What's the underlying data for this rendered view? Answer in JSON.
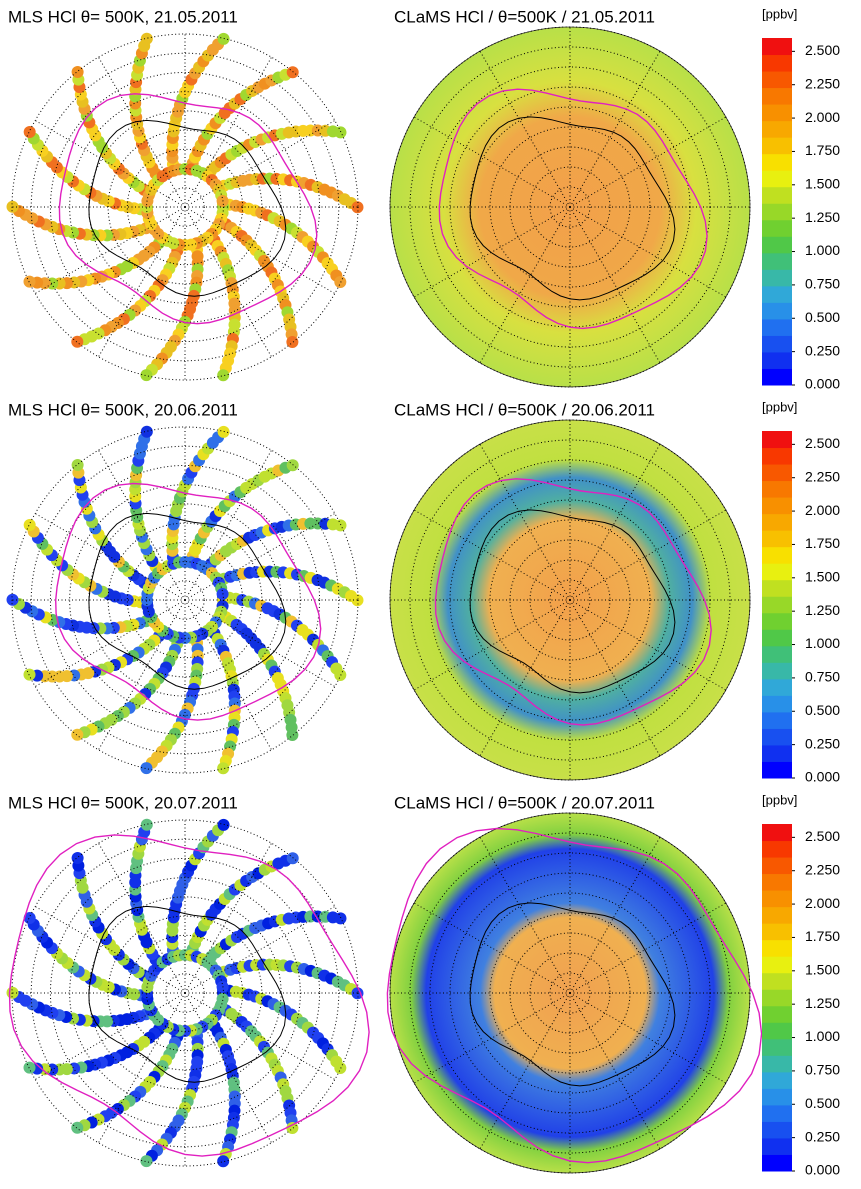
{
  "rows": [
    {
      "left_title": "MLS HCl  θ= 500K, 21.05.2011",
      "right_title": "CLaMS HCl / θ=500K / 21.05.2011",
      "colorbar": {
        "unit": "[ppbv]",
        "clim": [
          0,
          2.6
        ],
        "ticks": [
          {
            "value": 2.5,
            "label": "2.500"
          },
          {
            "value": 2.25,
            "label": "2.250"
          },
          {
            "value": 2,
            "label": "2.000"
          },
          {
            "value": 1.75,
            "label": "1.750"
          },
          {
            "value": 1.5,
            "label": "1.500"
          },
          {
            "value": 1.25,
            "label": "1.250"
          },
          {
            "value": 1,
            "label": "1.000"
          },
          {
            "value": 0.75,
            "label": "0.750"
          },
          {
            "value": 0.5,
            "label": "0.500"
          },
          {
            "value": 0.25,
            "label": "0.250"
          },
          {
            "value": 0,
            "label": "0.000"
          }
        ]
      }
    },
    {
      "left_title": "MLS HCl  θ= 500K, 20.06.2011",
      "right_title": "CLaMS HCl / θ=500K / 20.06.2011",
      "colorbar": {
        "unit": "[ppbv]",
        "clim": [
          0,
          2.6
        ],
        "ticks": [
          {
            "value": 2.5,
            "label": "2.500"
          },
          {
            "value": 2.25,
            "label": "2.250"
          },
          {
            "value": 2,
            "label": "2.000"
          },
          {
            "value": 1.75,
            "label": "1.750"
          },
          {
            "value": 1.5,
            "label": "1.500"
          },
          {
            "value": 1.25,
            "label": "1.250"
          },
          {
            "value": 1,
            "label": "1.000"
          },
          {
            "value": 0.75,
            "label": "0.750"
          },
          {
            "value": 0.5,
            "label": "0.500"
          },
          {
            "value": 0.25,
            "label": "0.250"
          },
          {
            "value": 0,
            "label": "0.000"
          }
        ]
      }
    },
    {
      "left_title": "MLS HCl  θ= 500K, 20.07.2011",
      "right_title": "CLaMS HCl / θ=500K / 20.07.2011",
      "colorbar": {
        "unit": "[ppbv]",
        "clim": [
          0,
          2.6
        ],
        "ticks": [
          {
            "value": 2.5,
            "label": "2.500"
          },
          {
            "value": 2.25,
            "label": "2.250"
          },
          {
            "value": 2,
            "label": "2.000"
          },
          {
            "value": 1.75,
            "label": "1.750"
          },
          {
            "value": 1.5,
            "label": "1.500"
          },
          {
            "value": 1.25,
            "label": "1.250"
          },
          {
            "value": 1,
            "label": "1.000"
          },
          {
            "value": 0.75,
            "label": "0.750"
          },
          {
            "value": 0.5,
            "label": "0.500"
          },
          {
            "value": 0.25,
            "label": "0.250"
          },
          {
            "value": 0,
            "label": "0.000"
          }
        ]
      }
    }
  ]
}
